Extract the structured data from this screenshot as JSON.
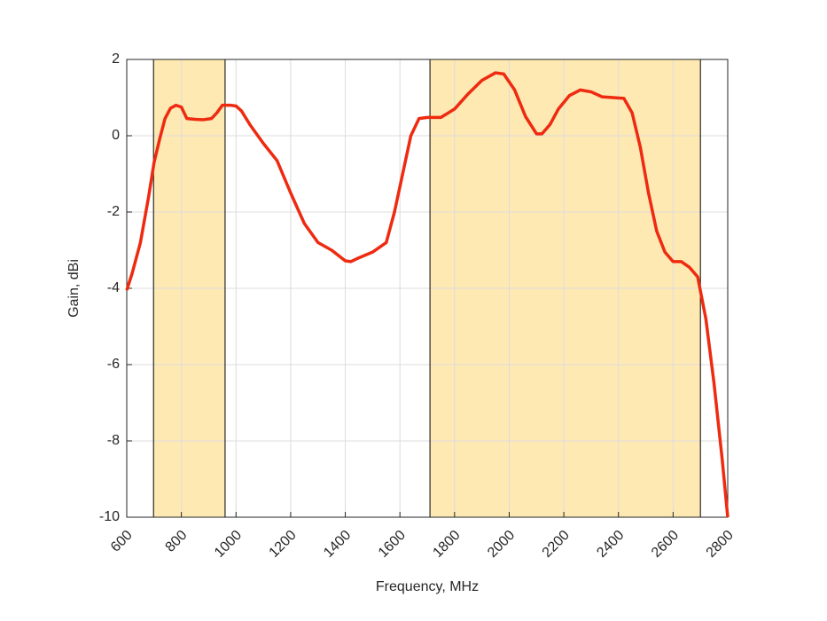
{
  "chart_data": {
    "type": "line",
    "x_label": "Frequency, MHz",
    "y_label": "Gain, dBi",
    "xlim": [
      600,
      2800
    ],
    "ylim": [
      -10,
      2
    ],
    "xticks": [
      600,
      800,
      1000,
      1200,
      1400,
      1600,
      1800,
      2000,
      2200,
      2400,
      2600,
      2800
    ],
    "yticks": [
      -10,
      -8,
      -6,
      -4,
      -2,
      0,
      2
    ],
    "grid": true,
    "bands": [
      [
        698,
        960
      ],
      [
        1710,
        2700
      ]
    ],
    "band_color": "#ffe9b3",
    "x": [
      600,
      620,
      650,
      680,
      700,
      720,
      740,
      760,
      780,
      800,
      820,
      850,
      880,
      910,
      930,
      950,
      980,
      1000,
      1020,
      1050,
      1100,
      1150,
      1200,
      1250,
      1300,
      1350,
      1400,
      1420,
      1450,
      1500,
      1550,
      1580,
      1610,
      1640,
      1670,
      1700,
      1750,
      1800,
      1850,
      1900,
      1950,
      1980,
      2020,
      2060,
      2100,
      2120,
      2150,
      2180,
      2220,
      2260,
      2300,
      2340,
      2380,
      2420,
      2450,
      2480,
      2510,
      2540,
      2570,
      2600,
      2630,
      2660,
      2690,
      2720,
      2750,
      2780,
      2800
    ],
    "series": [
      {
        "name": "Gain",
        "color": "#ee2a10",
        "values": [
          -4.05,
          -3.6,
          -2.8,
          -1.6,
          -0.7,
          -0.1,
          0.45,
          0.72,
          0.8,
          0.75,
          0.45,
          0.43,
          0.42,
          0.45,
          0.6,
          0.8,
          0.8,
          0.78,
          0.65,
          0.3,
          -0.2,
          -0.65,
          -1.5,
          -2.3,
          -2.8,
          -3.0,
          -3.28,
          -3.3,
          -3.2,
          -3.05,
          -2.8,
          -2.0,
          -1.0,
          0.0,
          0.45,
          0.48,
          0.48,
          0.7,
          1.1,
          1.45,
          1.65,
          1.62,
          1.2,
          0.5,
          0.05,
          0.05,
          0.3,
          0.7,
          1.05,
          1.2,
          1.15,
          1.02,
          1.0,
          0.98,
          0.6,
          -0.3,
          -1.5,
          -2.5,
          -3.05,
          -3.3,
          -3.3,
          -3.45,
          -3.7,
          -4.8,
          -6.5,
          -8.5,
          -10
        ]
      }
    ]
  }
}
